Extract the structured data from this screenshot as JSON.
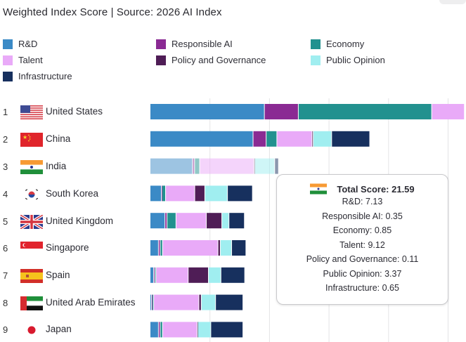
{
  "header": {
    "title": "Weighted Index Score | Source: 2026 AI Index"
  },
  "chart_data": {
    "type": "bar",
    "orientation": "horizontal",
    "stacked": true,
    "title": "Weighted Index Score | Source: 2026 AI Index",
    "xlabel": "",
    "ylabel": "",
    "xlim": [
      0,
      53
    ],
    "grid": true,
    "gridlines_at": [
      10,
      20,
      30,
      40,
      50
    ],
    "legend_position": "top",
    "categories": [
      "United States",
      "China",
      "India",
      "South Korea",
      "United Kingdom",
      "Singapore",
      "Spain",
      "United Arab Emirates",
      "Japan"
    ],
    "ranks": [
      "1",
      "2",
      "3",
      "4",
      "5",
      "6",
      "7",
      "8",
      "9"
    ],
    "series": [
      {
        "name": "R&D",
        "color": "#3b8ac6",
        "values": [
          19.2,
          17.3,
          7.13,
          1.9,
          2.5,
          1.4,
          0.6,
          0.25,
          1.4
        ]
      },
      {
        "name": "Responsible AI",
        "color": "#8a2a93",
        "values": [
          5.7,
          2.2,
          0.35,
          0.1,
          0.35,
          0.3,
          0.2,
          0.1,
          0.3
        ]
      },
      {
        "name": "Economy",
        "color": "#22918f",
        "values": [
          22.4,
          1.8,
          0.85,
          0.6,
          1.5,
          0.4,
          0.2,
          0.25,
          0.4
        ]
      },
      {
        "name": "Talent",
        "color": "#e9aaf8",
        "values": [
          5.5,
          5.9,
          9.12,
          4.9,
          5.1,
          9.3,
          5.4,
          7.6,
          5.8
        ]
      },
      {
        "name": "Policy and Governance",
        "color": "#4f1d56",
        "values": [
          0,
          0.2,
          0.11,
          1.7,
          2.6,
          0.4,
          3.4,
          0.4,
          0.1
        ]
      },
      {
        "name": "Public Opinion",
        "color": "#a0eef0",
        "values": [
          0,
          3.1,
          3.37,
          3.8,
          1.2,
          1.9,
          2.1,
          2.4,
          2.2
        ]
      },
      {
        "name": "Infrastructure",
        "color": "#17305e",
        "values": [
          0,
          6.4,
          0.65,
          4.2,
          2.6,
          2.4,
          4.0,
          4.6,
          5.4
        ]
      }
    ],
    "highlighted_category": "India",
    "notes": "United States bar extends beyond the visible area; its visible Talent portion is partial."
  },
  "legend": [
    {
      "label": "R&D",
      "color": "#3b8ac6"
    },
    {
      "label": "Responsible AI",
      "color": "#8a2a93"
    },
    {
      "label": "Economy",
      "color": "#22918f"
    },
    {
      "label": "Talent",
      "color": "#e9aaf8"
    },
    {
      "label": "Policy and Governance",
      "color": "#4f1d56"
    },
    {
      "label": "Public Opinion",
      "color": "#a0eef0"
    },
    {
      "label": "Infrastructure",
      "color": "#17305e"
    }
  ],
  "rows": [
    {
      "rank": "1",
      "country": "United States",
      "flag": "us-flag-icon"
    },
    {
      "rank": "2",
      "country": "China",
      "flag": "china-flag-icon"
    },
    {
      "rank": "3",
      "country": "India",
      "flag": "india-flag-icon"
    },
    {
      "rank": "4",
      "country": "South Korea",
      "flag": "south-korea-flag-icon"
    },
    {
      "rank": "5",
      "country": "United Kingdom",
      "flag": "uk-flag-icon"
    },
    {
      "rank": "6",
      "country": "Singapore",
      "flag": "singapore-flag-icon"
    },
    {
      "rank": "7",
      "country": "Spain",
      "flag": "spain-flag-icon"
    },
    {
      "rank": "8",
      "country": "United Arab Emirates",
      "flag": "uae-flag-icon"
    },
    {
      "rank": "9",
      "country": "Japan",
      "flag": "japan-flag-icon"
    }
  ],
  "tooltip": {
    "country": "India",
    "flag": "india-flag-icon",
    "total": "Total Score: 21.59",
    "lines": [
      "R&D: 7.13",
      "Responsible AI: 0.35",
      "Economy: 0.85",
      "Talent: 9.12",
      "Policy and Governance: 0.11",
      "Public Opinion: 3.37",
      "Infrastructure: 0.65"
    ]
  }
}
